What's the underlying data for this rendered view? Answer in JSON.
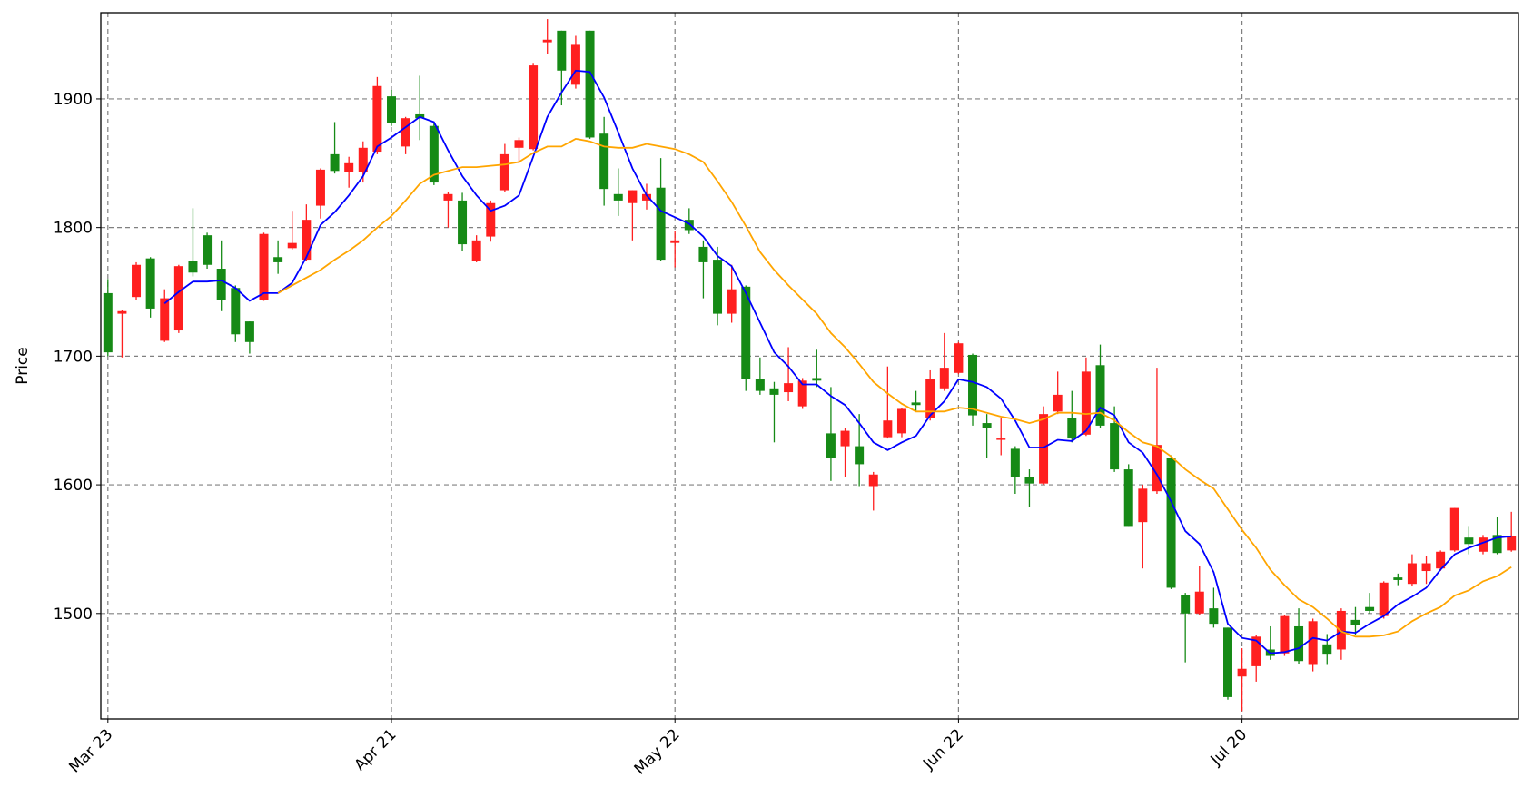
{
  "chart_data": {
    "type": "candlestick",
    "y_label": "Price",
    "categories": [
      "Mar 23",
      null,
      null,
      null,
      null,
      null,
      null,
      null,
      null,
      null,
      null,
      null,
      null,
      null,
      null,
      null,
      null,
      null,
      null,
      null,
      "Apr 21",
      null,
      null,
      null,
      null,
      null,
      null,
      null,
      null,
      null,
      null,
      null,
      null,
      null,
      null,
      null,
      null,
      null,
      null,
      null,
      "May 22",
      null,
      null,
      null,
      null,
      null,
      null,
      null,
      null,
      null,
      null,
      null,
      null,
      null,
      null,
      null,
      null,
      null,
      null,
      null,
      "Jun 22",
      null,
      null,
      null,
      null,
      null,
      null,
      null,
      null,
      null,
      null,
      null,
      null,
      null,
      null,
      null,
      null,
      null,
      null,
      null,
      "Jul 20",
      null,
      null,
      null,
      null,
      null,
      null,
      null,
      null,
      null,
      null,
      null,
      null,
      null,
      null,
      null,
      null,
      null,
      null,
      null
    ],
    "open": [
      1749,
      1733,
      1746,
      1776,
      1712,
      1720,
      1774,
      1794,
      1768,
      1753,
      1727,
      1744,
      1777,
      1784,
      1775,
      1817,
      1857,
      1843,
      1843,
      1859,
      1902,
      1863,
      1888,
      1879,
      1821,
      1821,
      1774,
      1793,
      1829,
      1862,
      1861,
      1944,
      1953,
      1911,
      1953,
      1873,
      1826,
      1819,
      1821,
      1831,
      1788,
      1806,
      1785,
      1775,
      1733,
      1754,
      1682,
      1675,
      1672,
      1661,
      1683,
      1640,
      1630,
      1630,
      1599,
      1637,
      1640,
      1664,
      1652,
      1675,
      1687,
      1701,
      1648,
      1635,
      1628,
      1606,
      1601,
      1657,
      1652,
      1639,
      1693,
      1648,
      1612,
      1571,
      1595,
      1621,
      1514,
      1500,
      1504,
      1489,
      1451,
      1459,
      1472,
      1469,
      1490,
      1460,
      1476,
      1472,
      1495,
      1505,
      1498,
      1528,
      1523,
      1533,
      1535,
      1549,
      1559,
      1548,
      1561,
      1549
    ],
    "high": [
      1760,
      1736,
      1773,
      1777,
      1752,
      1771,
      1815,
      1796,
      1790,
      1755,
      1727,
      1796,
      1790,
      1813,
      1818,
      1846,
      1882,
      1855,
      1867,
      1917,
      1907,
      1886,
      1918,
      1881,
      1828,
      1827,
      1794,
      1821,
      1865,
      1870,
      1928,
      1962,
      1953,
      1949,
      1953,
      1886,
      1846,
      1829,
      1834,
      1854,
      1797,
      1815,
      1790,
      1785,
      1771,
      1755,
      1699,
      1680,
      1707,
      1683,
      1705,
      1676,
      1644,
      1655,
      1610,
      1692,
      1660,
      1673,
      1689,
      1718,
      1711,
      1702,
      1655,
      1652,
      1630,
      1612,
      1661,
      1688,
      1673,
      1699,
      1709,
      1661,
      1616,
      1600,
      1691,
      1623,
      1516,
      1537,
      1520,
      1489,
      1473,
      1483,
      1490,
      1499,
      1504,
      1496,
      1484,
      1504,
      1505,
      1516,
      1525,
      1531,
      1546,
      1545,
      1549,
      1582,
      1568,
      1561,
      1575,
      1579
    ],
    "low": [
      1700,
      1699,
      1744,
      1730,
      1711,
      1718,
      1762,
      1768,
      1735,
      1711,
      1702,
      1743,
      1764,
      1783,
      1774,
      1807,
      1842,
      1831,
      1835,
      1857,
      1879,
      1857,
      1868,
      1833,
      1800,
      1782,
      1773,
      1789,
      1828,
      1850,
      1860,
      1935,
      1895,
      1908,
      1869,
      1817,
      1809,
      1790,
      1814,
      1774,
      1769,
      1795,
      1745,
      1724,
      1726,
      1673,
      1670,
      1633,
      1665,
      1659,
      1676,
      1603,
      1606,
      1599,
      1580,
      1636,
      1637,
      1657,
      1650,
      1673,
      1686,
      1646,
      1621,
      1623,
      1593,
      1583,
      1600,
      1655,
      1633,
      1638,
      1644,
      1610,
      1568,
      1535,
      1593,
      1519,
      1462,
      1499,
      1489,
      1433,
      1424,
      1447,
      1464,
      1467,
      1461,
      1455,
      1460,
      1464,
      1483,
      1500,
      1496,
      1522,
      1521,
      1523,
      1533,
      1548,
      1546,
      1546,
      1546,
      1548
    ],
    "close": [
      1703,
      1735,
      1771,
      1737,
      1745,
      1770,
      1765,
      1771,
      1744,
      1717,
      1711,
      1795,
      1773,
      1788,
      1806,
      1845,
      1844,
      1850,
      1862,
      1910,
      1881,
      1885,
      1885,
      1835,
      1826,
      1787,
      1790,
      1819,
      1857,
      1868,
      1926,
      1946,
      1922,
      1942,
      1870,
      1830,
      1821,
      1829,
      1826,
      1775,
      1790,
      1798,
      1773,
      1733,
      1752,
      1682,
      1673,
      1670,
      1679,
      1681,
      1681,
      1621,
      1642,
      1616,
      1608,
      1650,
      1659,
      1662,
      1682,
      1691,
      1710,
      1654,
      1644,
      1636,
      1606,
      1601,
      1655,
      1670,
      1636,
      1688,
      1646,
      1612,
      1568,
      1597,
      1631,
      1520,
      1500,
      1517,
      1492,
      1435,
      1457,
      1482,
      1467,
      1498,
      1463,
      1494,
      1468,
      1502,
      1491,
      1502,
      1524,
      1526,
      1539,
      1539,
      1548,
      1582,
      1554,
      1559,
      1547,
      1560
    ],
    "up_color": "#ff1f1f",
    "down_color": "#168a16",
    "lines": [
      {
        "color": "#0000ff",
        "values": [
          null,
          null,
          null,
          null,
          1741,
          1750,
          1758,
          1758,
          1759,
          1753,
          1743,
          1749,
          1749,
          1757,
          1777,
          1802,
          1812,
          1825,
          1840,
          1863,
          1870,
          1878,
          1886,
          1882,
          1860,
          1840,
          1825,
          1813,
          1817,
          1825,
          1855,
          1886,
          1905,
          1922,
          1921,
          1901,
          1874,
          1846,
          1825,
          1813,
          1808,
          1803,
          1793,
          1778,
          1770,
          1749,
          1726,
          1703,
          1692,
          1678,
          1678,
          1669,
          1662,
          1648,
          1633,
          1627,
          1633,
          1638,
          1654,
          1665,
          1682,
          1680,
          1676,
          1667,
          1650,
          1629,
          1629,
          1635,
          1634,
          1642,
          1660,
          1654,
          1633,
          1625,
          1608,
          1587,
          1564,
          1554,
          1532,
          1492,
          1481,
          1479,
          1469,
          1470,
          1473,
          1481,
          1479,
          1486,
          1485,
          1492,
          1498,
          1507,
          1513,
          1520,
          1534,
          1546,
          1551,
          1555,
          1559,
          1560
        ]
      },
      {
        "color": "#ffa500",
        "values": [
          null,
          null,
          null,
          null,
          null,
          null,
          null,
          null,
          null,
          null,
          null,
          null,
          1749,
          1755,
          1761,
          1767,
          1775,
          1782,
          1790,
          1800,
          1809,
          1821,
          1834,
          1841,
          1844,
          1847,
          1847,
          1848,
          1849,
          1851,
          1858,
          1863,
          1863,
          1869,
          1867,
          1863,
          1862,
          1862,
          1865,
          1863,
          1861,
          1857,
          1851,
          1836,
          1820,
          1801,
          1781,
          1767,
          1755,
          1744,
          1733,
          1718,
          1707,
          1694,
          1680,
          1671,
          1663,
          1657,
          1657,
          1657,
          1660,
          1659,
          1656,
          1653,
          1651,
          1648,
          1651,
          1656,
          1656,
          1655,
          1656,
          1650,
          1641,
          1633,
          1630,
          1622,
          1612,
          1604,
          1597,
          1581,
          1565,
          1551,
          1534,
          1522,
          1511,
          1505,
          1496,
          1486,
          1482,
          1482,
          1483,
          1486,
          1494,
          1500,
          1505,
          1514,
          1518,
          1525,
          1529,
          1536
        ]
      }
    ],
    "ylim": [
      1418,
      1967
    ],
    "yticks": [
      1500,
      1600,
      1700,
      1800,
      1900
    ],
    "xlim": [
      -0.5,
      99.5
    ],
    "grid": true
  }
}
